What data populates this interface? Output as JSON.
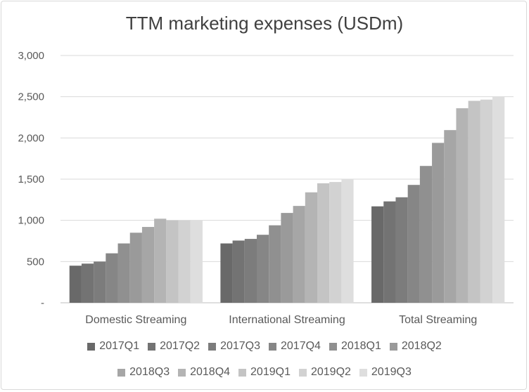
{
  "chart_data": {
    "type": "bar",
    "title": "TTM marketing expenses (USDm)",
    "categories": [
      "Domestic Streaming",
      "International Streaming",
      "Total Streaming"
    ],
    "ylim": [
      0,
      3000
    ],
    "yticks": [
      0,
      500,
      1000,
      1500,
      2000,
      2500,
      3000
    ],
    "ytick_labels": [
      "-",
      "500",
      "1,000",
      "1,500",
      "2,000",
      "2,500",
      "3,000"
    ],
    "grid": true,
    "legend_position": "bottom",
    "series": [
      {
        "name": "2017Q1",
        "color": "#696969",
        "values": [
          450,
          720,
          1170
        ]
      },
      {
        "name": "2017Q2",
        "color": "#737373",
        "values": [
          475,
          755,
          1230
        ]
      },
      {
        "name": "2017Q3",
        "color": "#7c7c7c",
        "values": [
          500,
          775,
          1280
        ]
      },
      {
        "name": "2017Q4",
        "color": "#868686",
        "values": [
          600,
          825,
          1430
        ]
      },
      {
        "name": "2018Q1",
        "color": "#909090",
        "values": [
          720,
          940,
          1660
        ]
      },
      {
        "name": "2018Q2",
        "color": "#9a9a9a",
        "values": [
          850,
          1090,
          1940
        ]
      },
      {
        "name": "2018Q3",
        "color": "#a6a6a6",
        "values": [
          920,
          1175,
          2095
        ]
      },
      {
        "name": "2018Q4",
        "color": "#b4b4b4",
        "values": [
          1020,
          1340,
          2360
        ]
      },
      {
        "name": "2019Q1",
        "color": "#c4c4c4",
        "values": [
          1000,
          1450,
          2450
        ]
      },
      {
        "name": "2019Q2",
        "color": "#d2d2d2",
        "values": [
          1000,
          1465,
          2465
        ]
      },
      {
        "name": "2019Q3",
        "color": "#dedede",
        "values": [
          1000,
          1500,
          2500
        ]
      }
    ]
  }
}
